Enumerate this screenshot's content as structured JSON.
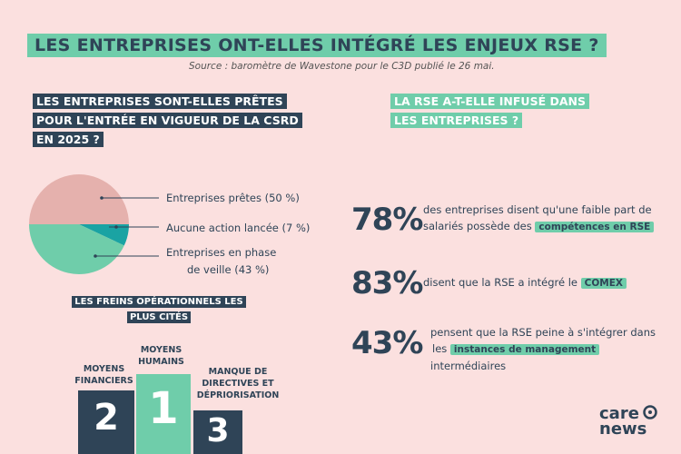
{
  "title": "LES ENTREPRISES ONT-ELLES INTÉGRÉ LES ENJEUX RSE ?",
  "source": "Source : baromètre de Wavestone pour le C3D publié le 26 mai.",
  "left_question": [
    "LES ENTREPRISES SONT-ELLES PRÊTES",
    "POUR L'ENTRÉE EN VIGUEUR DE LA CSRD",
    "EN 2025 ?"
  ],
  "right_question": [
    "LA RSE A-T-ELLE INFUSÉ DANS",
    "LES ENTREPRISES ?"
  ],
  "chart_data": [
    {
      "type": "pie",
      "slices": [
        {
          "label": "Entreprises prêtes (50 %)",
          "value": 50,
          "color": "#e5b1ad"
        },
        {
          "label": "Aucune action lancée (7 %)",
          "value": 7,
          "color": "#1aa3a3"
        },
        {
          "label_lines": [
            "Entreprises  en phase",
            "de veille (43 %)"
          ],
          "value": 43,
          "color": "#6fcdaa"
        }
      ]
    }
  ],
  "brakes": {
    "title": [
      "LES FREINS OPÉRATIONNELS LES",
      "PLUS CITÉS"
    ],
    "items": [
      {
        "rank": "2",
        "label": [
          "MOYENS",
          "FINANCIERS"
        ],
        "color": "#2f4457"
      },
      {
        "rank": "1",
        "label": [
          "MOYENS",
          "HUMAINS"
        ],
        "color": "#6fcdaa"
      },
      {
        "rank": "3",
        "label": [
          "MANQUE DE",
          "DIRECTIVES ET",
          "DÉPRIORISATION"
        ],
        "color": "#2f4457"
      }
    ]
  },
  "stats": [
    {
      "value": "78%",
      "text_before": "des entreprises disent qu'une faible part de",
      "text_mid": "salariés possède des",
      "tag": "compétences en RSE"
    },
    {
      "value": "83%",
      "text_before": "disent que la RSE a intégré le",
      "tag": "COMEX"
    },
    {
      "value": "43%",
      "text_before": "pensent que la RSE peine à s'intégrer dans",
      "text_mid": "les",
      "tag": "instances de management",
      "text_after": "intermédiaires"
    }
  ],
  "logo": {
    "line1": "care",
    "line2": "news"
  },
  "colors": {
    "background": "#fbe0df",
    "navy": "#2f4457",
    "green": "#6fcdaa",
    "teal": "#1aa3a3",
    "pink": "#e5b1ad"
  }
}
